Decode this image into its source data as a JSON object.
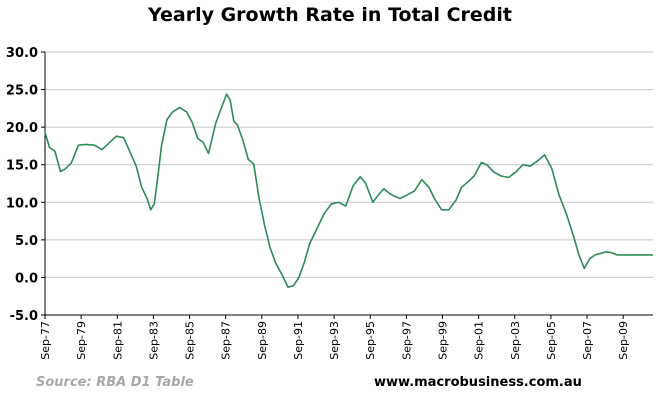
{
  "chart_data": {
    "type": "line",
    "title": "Yearly Growth Rate in Total Credit",
    "xlabel": "",
    "ylabel": "",
    "ylim": [
      -5.0,
      30.0
    ],
    "yticks": [
      "30.0",
      "25.0",
      "20.0",
      "15.0",
      "10.0",
      "5.0",
      "0.0",
      "-5.0"
    ],
    "xlim": [
      1977.75,
      2011.4
    ],
    "xticks": [
      {
        "label": "Sep-77",
        "x": 1977.75
      },
      {
        "label": "Sep-79",
        "x": 1979.75
      },
      {
        "label": "Sep-81",
        "x": 1981.75
      },
      {
        "label": "Sep-83",
        "x": 1983.75
      },
      {
        "label": "Sep-85",
        "x": 1985.75
      },
      {
        "label": "Sep-87",
        "x": 1987.75
      },
      {
        "label": "Sep-89",
        "x": 1989.75
      },
      {
        "label": "Sep-91",
        "x": 1991.75
      },
      {
        "label": "Sep-93",
        "x": 1993.75
      },
      {
        "label": "Sep-95",
        "x": 1995.75
      },
      {
        "label": "Sep-97",
        "x": 1997.75
      },
      {
        "label": "Sep-99",
        "x": 1999.75
      },
      {
        "label": "Sep-01",
        "x": 2001.75
      },
      {
        "label": "Sep-03",
        "x": 2003.75
      },
      {
        "label": "Sep-05",
        "x": 2005.75
      },
      {
        "label": "Sep-07",
        "x": 2007.75
      },
      {
        "label": "Sep-09",
        "x": 2009.75
      }
    ],
    "grid": {
      "horizontal": true,
      "vertical": false
    },
    "series": [
      {
        "color": "#2e8b57",
        "x": [
          1977.75,
          1978.0,
          1978.3,
          1978.6,
          1978.85,
          1979.2,
          1979.6,
          1980.0,
          1980.5,
          1980.9,
          1981.3,
          1981.7,
          1982.1,
          1982.4,
          1982.8,
          1983.1,
          1983.4,
          1983.6,
          1983.8,
          1984.0,
          1984.2,
          1984.5,
          1984.8,
          1985.2,
          1985.6,
          1985.9,
          1986.2,
          1986.5,
          1986.8,
          1987.2,
          1987.5,
          1987.8,
          1988.0,
          1988.2,
          1988.4,
          1988.7,
          1989.0,
          1989.3,
          1989.6,
          1989.9,
          1990.2,
          1990.5,
          1990.9,
          1991.2,
          1991.5,
          1991.8,
          1992.1,
          1992.4,
          1992.8,
          1993.2,
          1993.6,
          1994.0,
          1994.4,
          1994.8,
          1995.2,
          1995.5,
          1995.9,
          1996.2,
          1996.5,
          1996.8,
          1997.1,
          1997.4,
          1997.8,
          1998.2,
          1998.6,
          1999.0,
          1999.3,
          1999.7,
          2000.1,
          2000.5,
          2000.8,
          2001.2,
          2001.5,
          2001.9,
          2002.2,
          2002.6,
          2003.0,
          2003.4,
          2003.8,
          2004.2,
          2004.6,
          2005.0,
          2005.4,
          2005.8,
          2006.2,
          2006.6,
          2007.0,
          2007.3,
          2007.6,
          2007.9,
          2008.2,
          2008.5,
          2008.8,
          2009.1,
          2009.4,
          2009.7,
          2010.0,
          2010.4,
          2010.8,
          2011.2,
          2011.4
        ],
        "y": [
          19.3,
          17.3,
          16.8,
          14.1,
          14.4,
          15.2,
          17.6,
          17.7,
          17.6,
          17.0,
          17.9,
          18.8,
          18.6,
          17.0,
          14.8,
          12.0,
          10.5,
          9.0,
          9.8,
          13.5,
          17.5,
          21.0,
          22.0,
          22.6,
          22.0,
          20.6,
          18.5,
          18.0,
          16.5,
          20.5,
          22.5,
          24.4,
          23.6,
          20.8,
          20.3,
          18.3,
          15.7,
          15.1,
          10.5,
          7.0,
          4.0,
          2.0,
          0.2,
          -1.3,
          -1.1,
          0.0,
          2.0,
          4.5,
          6.5,
          8.5,
          9.8,
          10.0,
          9.5,
          12.2,
          13.4,
          12.5,
          10.0,
          11.0,
          11.8,
          11.2,
          10.8,
          10.5,
          11.0,
          11.5,
          13.0,
          12.0,
          10.5,
          9.0,
          9.0,
          10.3,
          12.0,
          12.8,
          13.5,
          15.3,
          15.0,
          14.0,
          13.5,
          13.3,
          14.0,
          15.0,
          14.8,
          15.5,
          16.3,
          14.5,
          11.0,
          8.5,
          5.5,
          3.0,
          1.2,
          2.5,
          3.0,
          3.2,
          3.4,
          3.3,
          3.0,
          3.0,
          3.0,
          3.0,
          3.0,
          3.0,
          3.0
        ]
      }
    ]
  },
  "footer": {
    "source": "Source: RBA D1 Table",
    "credit": "www.macrobusiness.com.au"
  }
}
